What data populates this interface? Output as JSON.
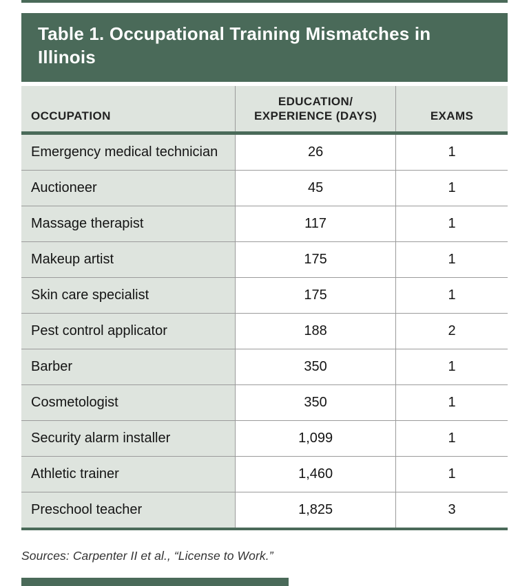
{
  "header": {
    "title": "Table 1. Occupational Training Mismatches in Illinois"
  },
  "table": {
    "columns": [
      {
        "label": "OCCUPATION"
      },
      {
        "label": "EDUCATION/EXPERIENCE (DAYS)",
        "line1": "EDUCATION/",
        "line2": "EXPERIENCE (DAYS)"
      },
      {
        "label": "EXAMS"
      }
    ],
    "rows": [
      [
        "Emergency medical technician",
        "26",
        "1"
      ],
      [
        "Auctioneer",
        "45",
        "1"
      ],
      [
        "Massage therapist",
        "117",
        "1"
      ],
      [
        "Makeup artist",
        "175",
        "1"
      ],
      [
        "Skin care specialist",
        "175",
        "1"
      ],
      [
        "Pest control applicator",
        "188",
        "2"
      ],
      [
        "Barber",
        "350",
        "1"
      ],
      [
        "Cosmetologist",
        "350",
        "1"
      ],
      [
        "Security alarm installer",
        "1,099",
        "1"
      ],
      [
        "Athletic trainer",
        "1,460",
        "1"
      ],
      [
        "Preschool teacher",
        "1,825",
        "3"
      ]
    ]
  },
  "footer": {
    "sources": "Sources: Carpenter II et al., “License to Work.”"
  },
  "colors": {
    "accent_green": "#4a6a59",
    "light_sage": "#dee4de",
    "border_gray": "#9a9a9a"
  }
}
